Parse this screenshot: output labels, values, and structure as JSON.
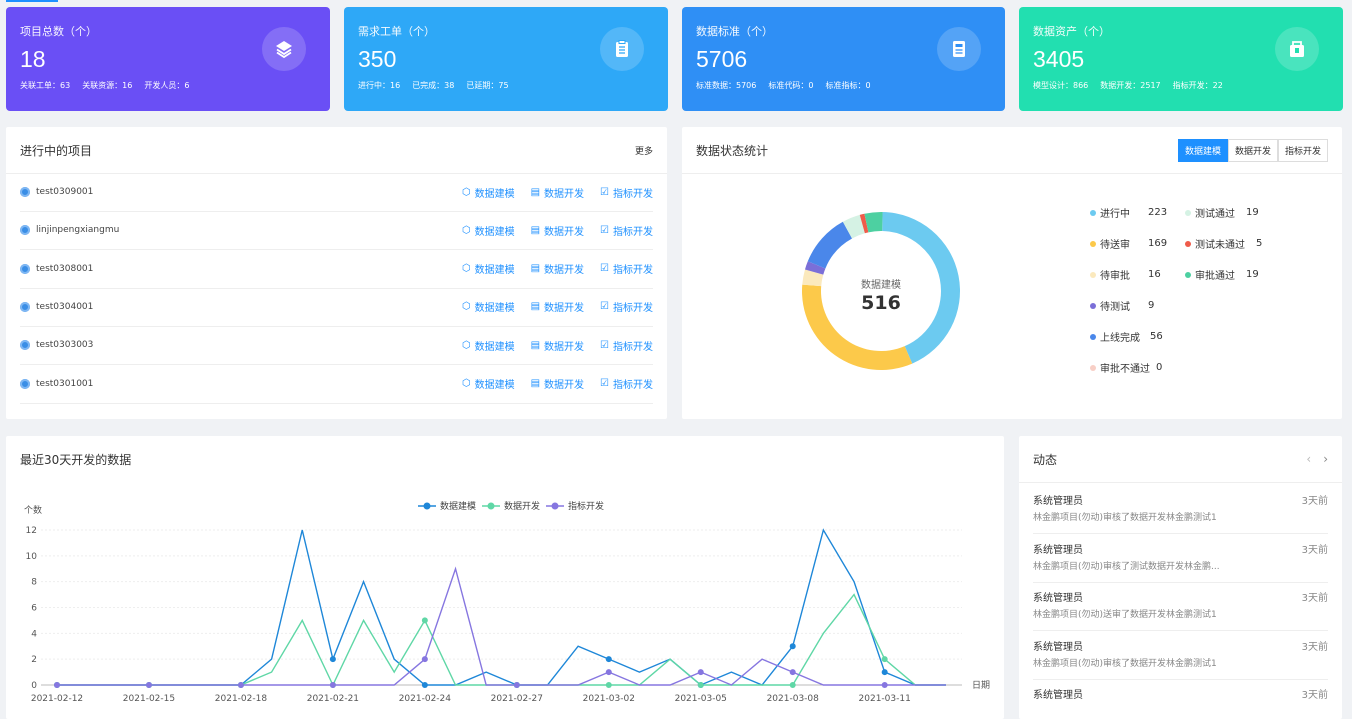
{
  "stats": [
    {
      "title": "项目总数（个）",
      "value": "18",
      "subs": [
        "关联工单：63",
        "关联资源：16",
        "开发人员：6"
      ],
      "color": "#6a4ff5",
      "icon": "layers-icon"
    },
    {
      "title": "需求工单（个）",
      "value": "350",
      "subs": [
        "进行中：16",
        "已完成：38",
        "已延期：75"
      ],
      "color": "#2ea8f7",
      "icon": "clipboard-icon"
    },
    {
      "title": "数据标准（个）",
      "value": "5706",
      "subs": [
        "标准数据：5706",
        "标准代码：0",
        "标准指标：0"
      ],
      "color": "#2f8ff5",
      "icon": "document-icon"
    },
    {
      "title": "数据资产（个）",
      "value": "3405",
      "subs": [
        "模型设计：866",
        "数据开发：2517",
        "指标开发：22"
      ],
      "color": "#22dfb0",
      "icon": "asset-icon"
    }
  ],
  "projects": {
    "title": "进行中的项目",
    "more": "更多",
    "actions": [
      "数据建模",
      "数据开发",
      "指标开发"
    ],
    "items": [
      "test0309001",
      "linjinpengxiangmu",
      "test0308001",
      "test0304001",
      "test0303003",
      "test0301001"
    ]
  },
  "status": {
    "title": "数据状态统计",
    "tabs": [
      "数据建模",
      "数据开发",
      "指标开发"
    ],
    "center_label": "数据建模",
    "center_value": "516",
    "legend": [
      {
        "label": "进行中",
        "value": "223",
        "color": "#6ccaf0"
      },
      {
        "label": "测试通过",
        "value": "19",
        "color": "#d5f2e4"
      },
      {
        "label": "待送审",
        "value": "169",
        "color": "#fcc94a"
      },
      {
        "label": "测试未通过",
        "value": "5",
        "color": "#ef5b4a"
      },
      {
        "label": "待审批",
        "value": "16",
        "color": "#fbe9bd"
      },
      {
        "label": "审批通过",
        "value": "19",
        "color": "#4dd0a1"
      },
      {
        "label": "待测试",
        "value": "9",
        "color": "#7b6fd8"
      },
      {
        "label": "上线完成",
        "value": "56",
        "color": "#4a87ea"
      },
      {
        "label": "审批不通过",
        "value": "0",
        "color": "#f8cfc6"
      }
    ]
  },
  "trend": {
    "title": "最近30天开发的数据",
    "ylabel": "个数",
    "xlabel": "日期"
  },
  "chart_data": {
    "type": "line",
    "ylim": [
      0,
      12
    ],
    "yticks": [
      0,
      2,
      4,
      6,
      8,
      10,
      12
    ],
    "xtick_labels": [
      "2021-02-12",
      "2021-02-15",
      "2021-02-18",
      "2021-02-21",
      "2021-02-24",
      "2021-02-27",
      "2021-03-02",
      "2021-03-05",
      "2021-03-08",
      "2021-03-11"
    ],
    "x": [
      "02-12",
      "02-13",
      "02-14",
      "02-15",
      "02-16",
      "02-17",
      "02-18",
      "02-19",
      "02-20",
      "02-21",
      "02-22",
      "02-23",
      "02-24",
      "02-25",
      "02-26",
      "02-27",
      "02-28",
      "03-01",
      "03-02",
      "03-03",
      "03-04",
      "03-05",
      "03-06",
      "03-07",
      "03-08",
      "03-09",
      "03-10",
      "03-11",
      "03-12",
      "03-13"
    ],
    "series": [
      {
        "name": "数据建模",
        "color": "#1e87d8",
        "values": [
          0,
          0,
          0,
          0,
          0,
          0,
          0,
          2,
          12,
          2,
          8,
          2,
          0,
          0,
          1,
          0,
          0,
          3,
          2,
          1,
          2,
          0,
          1,
          0,
          3,
          12,
          8,
          1,
          0,
          0
        ]
      },
      {
        "name": "数据开发",
        "color": "#5fd7a6",
        "values": [
          0,
          0,
          0,
          0,
          0,
          0,
          0,
          1,
          5,
          0,
          5,
          1,
          5,
          0,
          0,
          0,
          0,
          0,
          0,
          0,
          2,
          0,
          0,
          0,
          0,
          4,
          7,
          2,
          0,
          0
        ]
      },
      {
        "name": "指标开发",
        "color": "#8676e0",
        "values": [
          0,
          0,
          0,
          0,
          0,
          0,
          0,
          0,
          0,
          0,
          0,
          0,
          2,
          9,
          0,
          0,
          0,
          0,
          1,
          0,
          0,
          1,
          0,
          2,
          1,
          0,
          0,
          0,
          0,
          0
        ]
      }
    ],
    "markers": [
      0,
      3,
      6,
      9,
      12,
      15,
      18,
      21,
      24,
      27
    ]
  },
  "feed": {
    "title": "动态",
    "items": [
      {
        "user": "系统管理员",
        "time": "3天前",
        "text": "林金鹏项目(勿动)审核了数据开发林金鹏测试1"
      },
      {
        "user": "系统管理员",
        "time": "3天前",
        "text": "林金鹏项目(勿动)审核了测试数据开发林金鹏..."
      },
      {
        "user": "系统管理员",
        "time": "3天前",
        "text": "林金鹏项目(勿动)送审了数据开发林金鹏测试1"
      },
      {
        "user": "系统管理员",
        "time": "3天前",
        "text": "林金鹏项目(勿动)审核了数据开发林金鹏测试1"
      },
      {
        "user": "系统管理员",
        "time": "3天前",
        "text": ""
      }
    ]
  },
  "donut": {
    "values": [
      223,
      169,
      16,
      9,
      56,
      0,
      19,
      5,
      19
    ],
    "colors": [
      "#6ccaf0",
      "#fcc94a",
      "#fbe9bd",
      "#7b6fd8",
      "#4a87ea",
      "#f8cfc6",
      "#d5f2e4",
      "#ef5b4a",
      "#4dd0a1"
    ]
  }
}
